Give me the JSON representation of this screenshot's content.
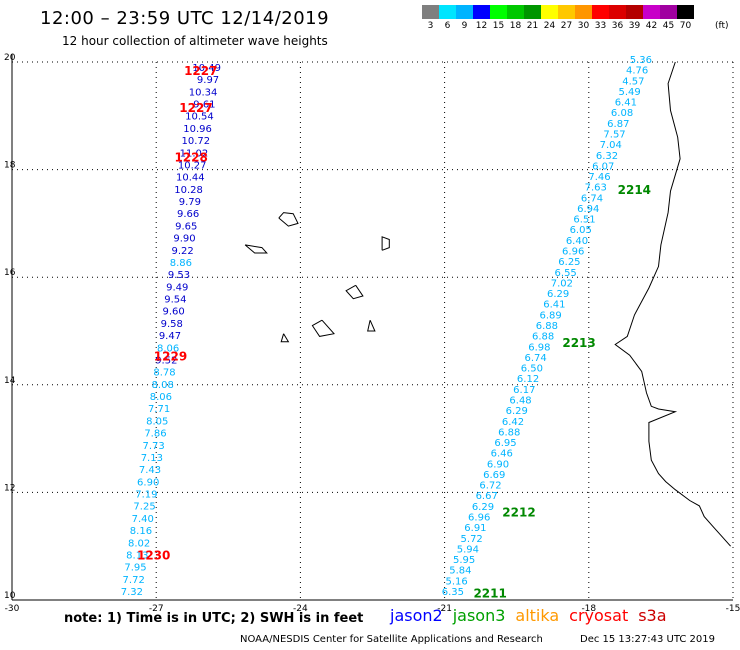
{
  "header": {
    "title": "12:00 – 23:59 UTC 12/14/2019",
    "subtitle": "12 hour collection of altimeter wave heights"
  },
  "scale": {
    "unit": "(ft)",
    "bins": [
      {
        "label": "3",
        "color": "#7f7f7f"
      },
      {
        "label": "6",
        "color": "#00e5ff"
      },
      {
        "label": "9",
        "color": "#00b4ff"
      },
      {
        "label": "12",
        "color": "#0000ff"
      },
      {
        "label": "15",
        "color": "#00ff00"
      },
      {
        "label": "18",
        "color": "#00c800"
      },
      {
        "label": "21",
        "color": "#009600"
      },
      {
        "label": "24",
        "color": "#ffff00"
      },
      {
        "label": "27",
        "color": "#ffc800"
      },
      {
        "label": "30",
        "color": "#ff9600"
      },
      {
        "label": "33",
        "color": "#ff0000"
      },
      {
        "label": "36",
        "color": "#dc0000"
      },
      {
        "label": "39",
        "color": "#b40000"
      },
      {
        "label": "42",
        "color": "#c800c8"
      },
      {
        "label": "45",
        "color": "#a000a0"
      },
      {
        "label": "70",
        "color": "#000000"
      }
    ]
  },
  "map": {
    "lon_range": [
      -30,
      -15
    ],
    "lat_range": [
      10,
      20
    ],
    "lon_ticks": [
      "-30",
      "-27",
      "-24",
      "-21",
      "-18",
      "-15"
    ],
    "lat_ticks": [
      "20",
      "18",
      "16",
      "14",
      "12",
      "10"
    ]
  },
  "tracks": {
    "west": [
      {
        "v": "10.49",
        "c": "#0000cc"
      },
      {
        "v": "9.97",
        "c": "#0000cc"
      },
      {
        "v": "10.34",
        "c": "#0000cc"
      },
      {
        "v": "9.61",
        "c": "#0000cc"
      },
      {
        "v": "10.54",
        "c": "#0000cc"
      },
      {
        "v": "10.96",
        "c": "#0000cc"
      },
      {
        "v": "10.72",
        "c": "#0000cc"
      },
      {
        "v": "11.02",
        "c": "#0000cc"
      },
      {
        "v": "10.27",
        "c": "#0000cc"
      },
      {
        "v": "10.44",
        "c": "#0000cc"
      },
      {
        "v": "10.28",
        "c": "#0000cc"
      },
      {
        "v": "9.79",
        "c": "#0000cc"
      },
      {
        "v": "9.66",
        "c": "#0000cc"
      },
      {
        "v": "9.65",
        "c": "#0000cc"
      },
      {
        "v": "9.90",
        "c": "#0000cc"
      },
      {
        "v": "9.22",
        "c": "#0000cc"
      },
      {
        "v": "8.86",
        "c": "#00b4ff"
      },
      {
        "v": "9.53",
        "c": "#0000cc"
      },
      {
        "v": "9.49",
        "c": "#0000cc"
      },
      {
        "v": "9.54",
        "c": "#0000cc"
      },
      {
        "v": "9.60",
        "c": "#0000cc"
      },
      {
        "v": "9.58",
        "c": "#0000cc"
      },
      {
        "v": "9.47",
        "c": "#0000cc"
      },
      {
        "v": "8.06",
        "c": "#00b4ff"
      },
      {
        "v": "9.52",
        "c": "#0000cc"
      },
      {
        "v": "8.78",
        "c": "#00b4ff"
      },
      {
        "v": "8.08",
        "c": "#00b4ff"
      },
      {
        "v": "8.06",
        "c": "#00b4ff"
      },
      {
        "v": "7.71",
        "c": "#00b4ff"
      },
      {
        "v": "8.05",
        "c": "#00b4ff"
      },
      {
        "v": "7.86",
        "c": "#00b4ff"
      },
      {
        "v": "7.73",
        "c": "#00b4ff"
      },
      {
        "v": "7.13",
        "c": "#00b4ff"
      },
      {
        "v": "7.43",
        "c": "#00b4ff"
      },
      {
        "v": "6.90",
        "c": "#00b4ff"
      },
      {
        "v": "7.19",
        "c": "#00b4ff"
      },
      {
        "v": "7.25",
        "c": "#00b4ff"
      },
      {
        "v": "7.40",
        "c": "#00b4ff"
      },
      {
        "v": "8.16",
        "c": "#00b4ff"
      },
      {
        "v": "8.02",
        "c": "#00b4ff"
      },
      {
        "v": "8.13",
        "c": "#00b4ff"
      },
      {
        "v": "7.95",
        "c": "#00b4ff"
      },
      {
        "v": "7.72",
        "c": "#00b4ff"
      },
      {
        "v": "7.32",
        "c": "#00b4ff"
      }
    ],
    "east": [
      "5.36",
      "4.76",
      "4.57",
      "5.49",
      "6.41",
      "6.08",
      "6.87",
      "7.57",
      "7.04",
      "6.32",
      "6.07",
      "7.46",
      "7.63",
      "6.74",
      "6.94",
      "6.51",
      "6.05",
      "6.40",
      "6.96",
      "6.25",
      "6.55",
      "7.02",
      "6.29",
      "6.41",
      "6.89",
      "6.88",
      "6.88",
      "6.98",
      "6.74",
      "6.50",
      "6.12",
      "6.17",
      "6.48",
      "6.29",
      "6.42",
      "6.88",
      "6.95",
      "6.46",
      "6.90",
      "6.69",
      "6.72",
      "6.67",
      "6.29",
      "6.96",
      "6.91",
      "5.72",
      "5.94",
      "5.95",
      "5.84",
      "5.16",
      "6.35"
    ],
    "east_color": "#00b4ff"
  },
  "pass_labels": [
    {
      "text": "1227",
      "color": "#ff0000",
      "lon": -26.42,
      "lat": 19.76
    },
    {
      "text": "1227",
      "color": "#ff0000",
      "lon": -26.52,
      "lat": 19.07
    },
    {
      "text": "1228",
      "color": "#ff0000",
      "lon": -26.62,
      "lat": 18.15
    },
    {
      "text": "1229",
      "color": "#ff0000",
      "lon": -27.05,
      "lat": 14.45
    },
    {
      "text": "1230",
      "color": "#ff0000",
      "lon": -27.4,
      "lat": 10.75
    },
    {
      "text": "2214",
      "color": "#008800",
      "lon": -17.4,
      "lat": 17.55
    },
    {
      "text": "2213",
      "color": "#008800",
      "lon": -18.55,
      "lat": 14.7
    },
    {
      "text": "2212",
      "color": "#008800",
      "lon": -19.8,
      "lat": 11.55
    },
    {
      "text": "2211",
      "color": "#008800",
      "lon": -20.4,
      "lat": 10.05
    }
  ],
  "footer": {
    "note": "note: 1) Time is in UTC; 2) SWH is in feet",
    "satellites": [
      {
        "name": "jason2",
        "color": "#0000ff"
      },
      {
        "name": "jason3",
        "color": "#00a000"
      },
      {
        "name": "altika",
        "color": "#ff9900"
      },
      {
        "name": "cryosat",
        "color": "#ff0000"
      },
      {
        "name": "s3a",
        "color": "#cc0000"
      }
    ],
    "credit": "NOAA/NESDIS Center for Satellite Applications and Research",
    "timestamp": "Dec 15 13:27:43 UTC 2019"
  }
}
